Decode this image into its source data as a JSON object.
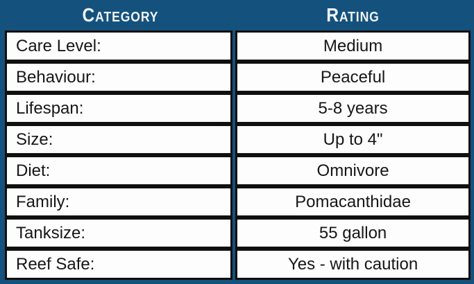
{
  "chart_data": {
    "type": "table",
    "columns": [
      "Category",
      "Rating"
    ],
    "rows": [
      [
        "Care Level:",
        "Medium"
      ],
      [
        "Behaviour:",
        "Peaceful"
      ],
      [
        "Lifespan:",
        "5-8 years"
      ],
      [
        "Size:",
        "Up to 4\""
      ],
      [
        "Diet:",
        "Omnivore"
      ],
      [
        "Family:",
        "Pomacanthidae"
      ],
      [
        "Tanksize:",
        "55 gallon"
      ],
      [
        "Reef Safe:",
        "Yes - with caution"
      ]
    ],
    "title": "",
    "layout_hints": {
      "header_style": "small-caps bold white on dark blue band",
      "category_alignment": "left",
      "rating_alignment": "center",
      "grid": "each cell is a white box with thick black border on blue background"
    }
  },
  "colors": {
    "panel_background": "#15517d",
    "cell_background": "#fdfdfd",
    "cell_border": "#101010",
    "header_text": "#eff4f8",
    "body_text": "#161616"
  }
}
